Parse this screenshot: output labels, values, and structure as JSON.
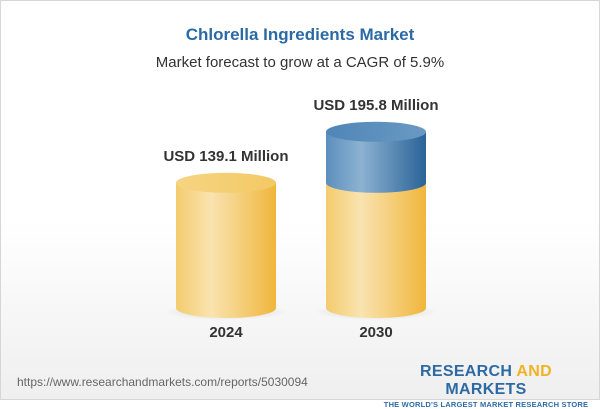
{
  "title": "Chlorella Ingredients Market",
  "subtitle": "Market forecast to grow at a CAGR of 5.9%",
  "chart_data": {
    "type": "bar",
    "style": "3d-cylinder",
    "categories": [
      "2024",
      "2030"
    ],
    "values": [
      139.1,
      195.8
    ],
    "data_labels": [
      "USD 139.1 Million",
      "USD 195.8 Million"
    ],
    "unit": "USD Million",
    "colors": {
      "base": "#f3c55a",
      "growth": "#3f78aa"
    }
  },
  "footer": {
    "url": "https://www.researchandmarkets.com/reports/5030094",
    "logo_line1_a": "RESEARCH ",
    "logo_line1_b": "AND",
    "logo_line1_c": " MARKETS",
    "logo_line2": "THE WORLD'S LARGEST MARKET RESEARCH STORE"
  }
}
